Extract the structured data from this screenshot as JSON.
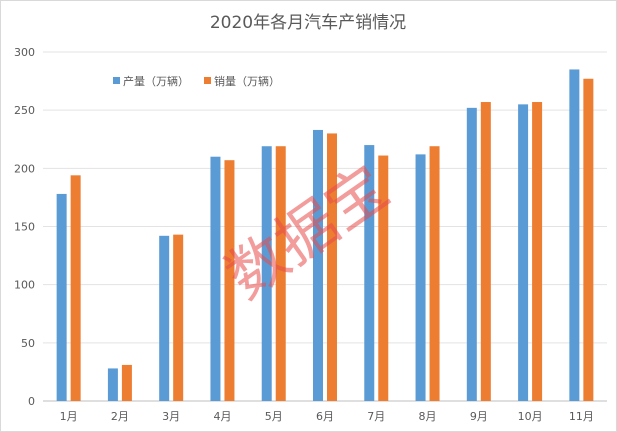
{
  "chart_data": {
    "type": "bar",
    "title": "2020年各月汽车产销情况",
    "watermark": "数据宝",
    "categories": [
      "1月",
      "2月",
      "3月",
      "4月",
      "5月",
      "6月",
      "7月",
      "8月",
      "9月",
      "10月",
      "11月"
    ],
    "series": [
      {
        "name": "产量（万辆）",
        "color": "#5b9bd5",
        "values": [
          178,
          28,
          142,
          210,
          219,
          233,
          220,
          212,
          252,
          255,
          285
        ]
      },
      {
        "name": "销量（万辆）",
        "color": "#ed7d31",
        "values": [
          194,
          31,
          143,
          207,
          219,
          230,
          211,
          219,
          257,
          257,
          277
        ]
      }
    ],
    "ylim": [
      0,
      300
    ],
    "yticks": [
      0,
      50,
      100,
      150,
      200,
      250,
      300
    ],
    "grid": true,
    "legend_position": "top-left"
  }
}
